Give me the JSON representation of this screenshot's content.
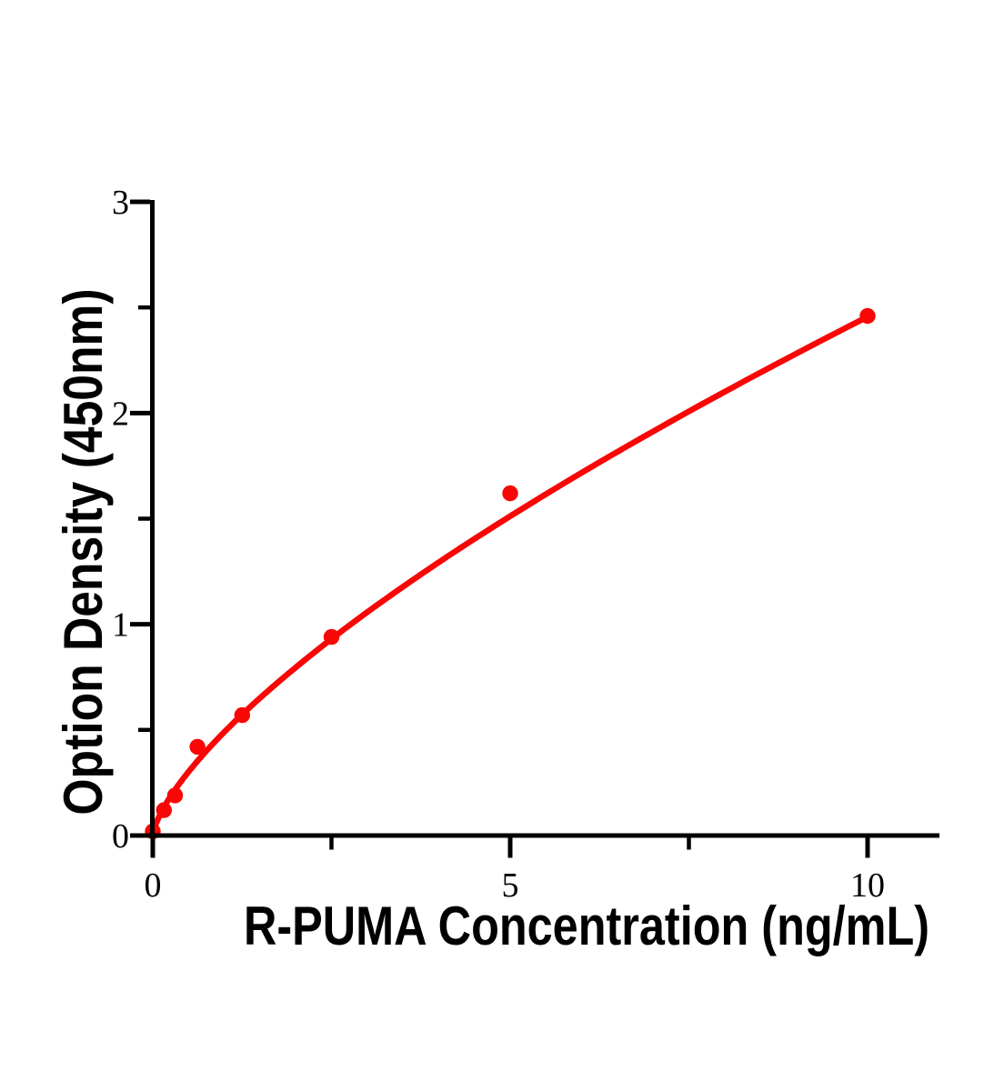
{
  "page": {
    "background": "#ffffff"
  },
  "chart_data": {
    "type": "scatter",
    "title": "",
    "xlabel": "R-PUMA Concentration (ng/mL)",
    "ylabel": "Option Density (450nm)",
    "points": [
      {
        "x": 0,
        "y": 0.02
      },
      {
        "x": 0.156,
        "y": 0.12
      },
      {
        "x": 0.312,
        "y": 0.19
      },
      {
        "x": 0.625,
        "y": 0.42
      },
      {
        "x": 1.25,
        "y": 0.57
      },
      {
        "x": 2.5,
        "y": 0.94
      },
      {
        "x": 5,
        "y": 1.62
      },
      {
        "x": 10,
        "y": 2.46
      }
    ],
    "fit_curve": {
      "type": "power",
      "equation": "y = 0.49 * x^0.70",
      "a": 0.49,
      "b": 0.7,
      "x_end": 10
    },
    "xlim": [
      0,
      11
    ],
    "ylim": [
      0,
      3
    ],
    "x_major_ticks": [
      {
        "value": 0,
        "label": "0"
      },
      {
        "value": 5,
        "label": "5"
      },
      {
        "value": 10,
        "label": "10"
      }
    ],
    "x_minor_ticks": [
      2.5,
      7.5
    ],
    "y_major_ticks": [
      {
        "value": 0,
        "label": "0"
      },
      {
        "value": 1,
        "label": "1"
      },
      {
        "value": 2,
        "label": "2"
      },
      {
        "value": 3,
        "label": "3"
      }
    ],
    "y_minor_ticks": [
      0.5,
      1.5,
      2.5
    ],
    "grid": false,
    "legend": null,
    "marker_color": "#f90606",
    "line_color": "#f90606",
    "axis_color": "#000000",
    "text_color": "#000000"
  }
}
